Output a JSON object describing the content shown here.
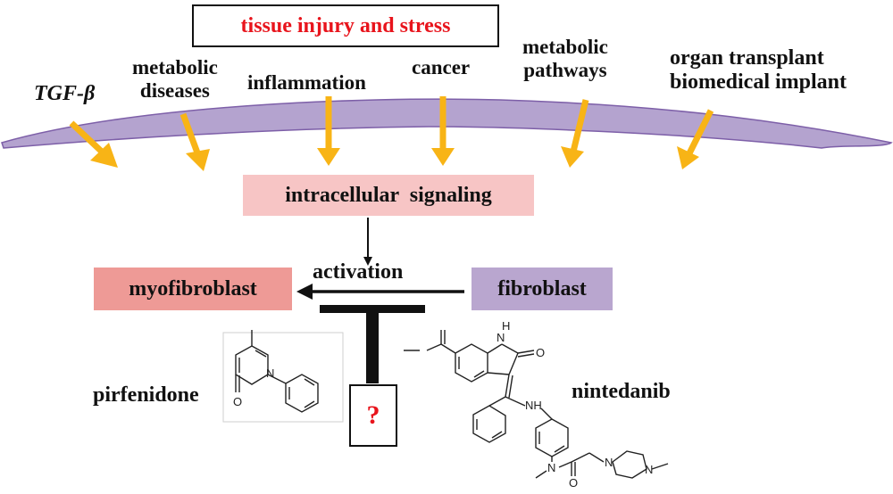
{
  "title_box": {
    "label": "tissue injury and stress",
    "text_color": "#e8141c"
  },
  "stimuli": {
    "tgf_beta": "TGF-β",
    "metabolic_diseases": [
      "metabolic",
      "diseases"
    ],
    "inflammation": "inflammation",
    "cancer": "cancer",
    "metabolic_pathways": [
      "metabolic",
      "pathways"
    ],
    "transplant": [
      "organ transplant",
      "biomedical implant"
    ]
  },
  "signaling": {
    "label": "intracellular  signaling",
    "fill": "#f7c5c5"
  },
  "activation": {
    "label": "activation"
  },
  "myofibroblast": {
    "label": "myofibroblast",
    "fill": "#ee9a96"
  },
  "fibroblast": {
    "label": "fibroblast",
    "fill": "#b9a6cf"
  },
  "unknown_inhibitor": {
    "label": "?",
    "text_color": "#e8141c"
  },
  "drugs": {
    "pirfenidone": "pirfenidone",
    "nintedanib": "nintedanib"
  },
  "nintedanib_atoms": {
    "nh": "N",
    "h": "H",
    "o_lactam": "O",
    "nh2": "NH",
    "n_amide": "N",
    "o_amide": "O",
    "n_pip1": "N",
    "n_pip2": "N"
  },
  "pirfenidone_atoms": {
    "n": "N",
    "o": "O"
  },
  "colors": {
    "membrane": "#b4a3cf",
    "membrane_stroke": "#7d5fa8",
    "arrow": "#f8b416"
  }
}
